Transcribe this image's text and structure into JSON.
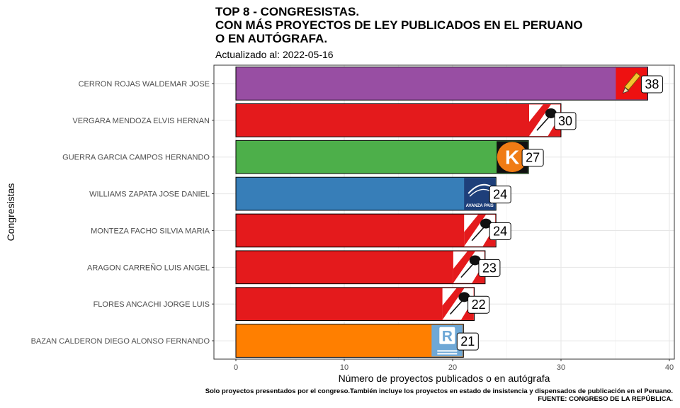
{
  "title": "TOP 8 - CONGRESISTAS.\nCON MÁS PROYECTOS DE LEY PUBLICADOS EN EL PERUANO\nO EN AUTÓGRAFA.",
  "subtitle": "Actualizado al: 2022-05-16",
  "caption": {
    "line1": "Solo proyectos presentados por el congreso.También incluye los proyectos en estado de insistencia y dispensados de publicación en el Peruano.",
    "line2": "FUENTE: CONGRESO DE LA REPÚBLICA."
  },
  "chart_data": {
    "type": "bar",
    "orientation": "horizontal",
    "title": "TOP 8 - CONGRESISTAS. CON MÁS PROYECTOS DE LEY PUBLICADOS EN EL PERUANO O EN AUTÓGRAFA.",
    "xlabel": "Número de proyectos publicados o en autógrafa",
    "ylabel": "Congresistas",
    "xlim": [
      0,
      40
    ],
    "xticks": [
      0,
      10,
      20,
      30,
      40
    ],
    "grid": true,
    "categories": [
      "CERRON ROJAS WALDEMAR JOSE",
      "VERGARA MENDOZA ELVIS HERNAN",
      "GUERRA GARCIA CAMPOS HERNANDO",
      "WILLIAMS ZAPATA JOSE DANIEL",
      "MONTEZA FACHO SILVIA MARIA",
      "ARAGON CARREÑO LUIS ANGEL",
      "FLORES ANCACHI JORGE LUIS",
      "BAZAN CALDERON DIEGO ALONSO FERNANDO"
    ],
    "values": [
      38,
      30,
      27,
      24,
      24,
      23,
      22,
      21
    ],
    "colors": [
      "#984ea3",
      "#e41a1c",
      "#4daf4a",
      "#377eb8",
      "#e41a1c",
      "#e41a1c",
      "#e41a1c",
      "#ff7f00"
    ],
    "logos": [
      "pencil-logo",
      "shovel-logo",
      "k-logo",
      "app-logo",
      "shovel-logo",
      "shovel-logo",
      "shovel-logo",
      "r-logo"
    ],
    "logo_text": {
      "k-logo": "K",
      "app-logo": "AVANZA PAIS",
      "r-logo": "R"
    }
  }
}
